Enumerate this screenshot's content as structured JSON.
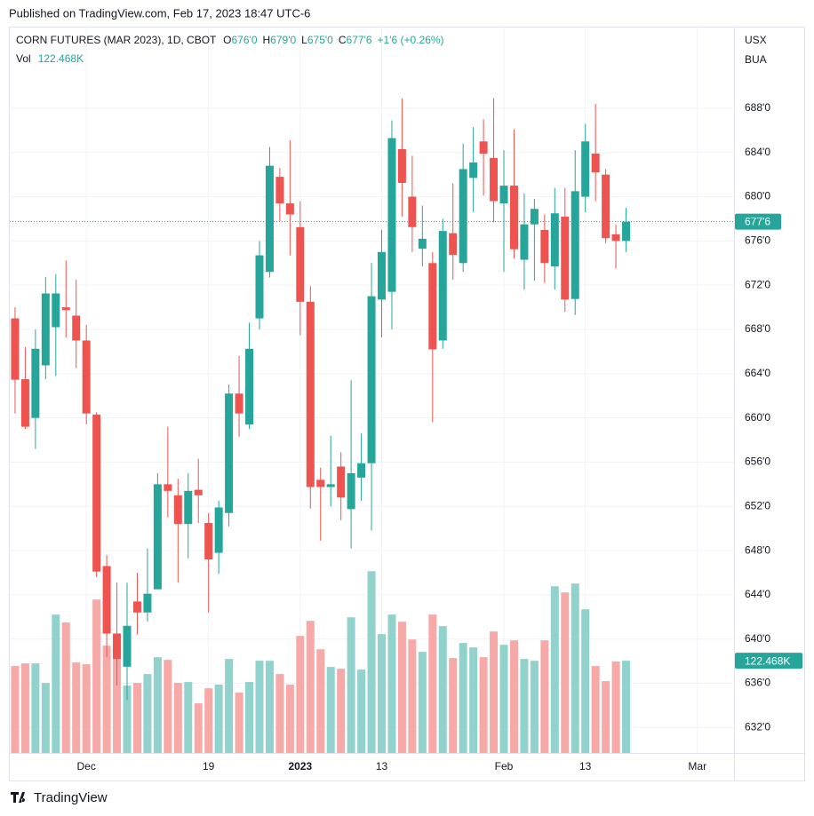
{
  "published": "Published on TradingView.com, Feb 17, 2023 18:47 UTC-6",
  "footer": "TradingView",
  "chart_data": {
    "type": "candlestick",
    "title": "CORN FUTURES (MAR 2023), 1D, CBOT",
    "legend_values": [
      {
        "prefix": "O",
        "text": "676'0"
      },
      {
        "prefix": "H",
        "text": "679'0"
      },
      {
        "prefix": "L",
        "text": "675'0"
      },
      {
        "prefix": "C",
        "text": "677'6"
      }
    ],
    "change": "+1'6 (+0.26%)",
    "volume_name": "Vol",
    "currency": "USX",
    "unit": "BUA",
    "up_color": "#26a69a",
    "down_color": "#ef5350",
    "volume_up_color": "#92d2cc",
    "volume_down_color": "#f7a9a7",
    "grid": true,
    "xlim": [
      -0.52,
      70.6
    ],
    "xticks": [
      {
        "value": 7,
        "label": "Dec"
      },
      {
        "value": 19,
        "label": "19"
      },
      {
        "value": 28,
        "label": "2023"
      },
      {
        "value": 36,
        "label": "13"
      },
      {
        "value": 48,
        "label": "Feb"
      },
      {
        "value": 56,
        "label": "13"
      },
      {
        "value": 67,
        "label": "Mar"
      }
    ],
    "ylim": [
      629.7,
      695.3
    ],
    "yticks": [
      {
        "value": 632,
        "label": "632'0"
      },
      {
        "value": 636,
        "label": "636'0"
      },
      {
        "value": 640,
        "label": "640'0"
      },
      {
        "value": 644,
        "label": "644'0"
      },
      {
        "value": 648,
        "label": "648'0"
      },
      {
        "value": 652,
        "label": "652'0"
      },
      {
        "value": 656,
        "label": "656'0"
      },
      {
        "value": 660,
        "label": "660'0"
      },
      {
        "value": 664,
        "label": "664'0"
      },
      {
        "value": 668,
        "label": "668'0"
      },
      {
        "value": 672,
        "label": "672'0"
      },
      {
        "value": 676,
        "label": "676'0"
      },
      {
        "value": 680,
        "label": "680'0"
      },
      {
        "value": 684,
        "label": "684'0"
      },
      {
        "value": 688,
        "label": "688'0"
      }
    ],
    "open": [
      669,
      663.5,
      660,
      664.75,
      668.2,
      670,
      669.25,
      667,
      660.3,
      646.6,
      640.5,
      637.5,
      643.4,
      642.4,
      644.5,
      654,
      653,
      650.4,
      653.5,
      650.5,
      647.8,
      651.4,
      662.2,
      659.4,
      669,
      673.2,
      681.8,
      679.4,
      677.25,
      670.5,
      654.4,
      653.75,
      655.6,
      651.75,
      654.6,
      655.9,
      670.7,
      671.4,
      684.3,
      680,
      675.3,
      674,
      667,
      676.7,
      674,
      681.7,
      685,
      683.5,
      679.4,
      681,
      674.3,
      677.5,
      677,
      673.7,
      678.2,
      670.75,
      680,
      683.9,
      682,
      676.6,
      676
    ],
    "high": [
      670,
      666.4,
      668,
      672.75,
      673,
      674.25,
      672.5,
      668.4,
      660.5,
      647.6,
      645.1,
      645.1,
      646,
      648.2,
      655,
      659.2,
      654.5,
      655,
      656.3,
      651.4,
      652.5,
      663,
      665.6,
      668.6,
      676,
      684.5,
      682.6,
      685.1,
      679.6,
      671.9,
      655.5,
      658.4,
      656.9,
      663.4,
      658.6,
      674,
      677,
      686.9,
      688.9,
      683.7,
      679.2,
      675,
      678,
      681.2,
      684.8,
      686.3,
      687,
      688.9,
      684.2,
      686.1,
      680.3,
      679.8,
      678.4,
      680.8,
      680.8,
      684.2,
      686.6,
      688.4,
      682.5,
      677.5,
      679
    ],
    "low": [
      660.4,
      659,
      657.2,
      663.5,
      663.8,
      667.25,
      664.5,
      659.4,
      645.6,
      638.4,
      635.8,
      634.5,
      640.4,
      641.6,
      644.5,
      651,
      645.1,
      647.3,
      650.5,
      642.4,
      645.9,
      650.2,
      658.3,
      659,
      668,
      672.7,
      677.8,
      674.7,
      667.5,
      651.8,
      648.9,
      652,
      650.75,
      648.2,
      652.5,
      649.8,
      667.3,
      668,
      678.2,
      675,
      673.7,
      659.6,
      666.25,
      672.5,
      673.2,
      678.6,
      680.1,
      677.7,
      673.2,
      674.4,
      671.6,
      672.4,
      672.2,
      671.6,
      669.6,
      669.3,
      678.6,
      679.6,
      675.8,
      673.5,
      675
    ],
    "close": [
      663.45,
      659.2,
      666.25,
      671.25,
      671.25,
      669.75,
      667,
      660.4,
      646.1,
      640.5,
      638.2,
      641.2,
      642.4,
      644.1,
      654,
      653.4,
      650.4,
      653.4,
      653,
      647.2,
      651.9,
      662.2,
      660.4,
      666.25,
      674.7,
      682.8,
      679.4,
      678.4,
      670.5,
      653.75,
      653.75,
      654,
      652.8,
      655,
      655.9,
      671,
      675,
      685.3,
      681.25,
      677.25,
      676.2,
      666.2,
      676.9,
      674.75,
      682.5,
      683.1,
      683.9,
      679.6,
      681,
      675.25,
      677.5,
      678.9,
      674,
      678.5,
      670.7,
      680.5,
      685,
      682.2,
      676.25,
      676,
      677.75
    ],
    "volume": [
      115400,
      118900,
      118900,
      93000,
      183700,
      173100,
      120100,
      117700,
      203700,
      142500,
      156600,
      89500,
      93000,
      104800,
      127100,
      123600,
      93000,
      94200,
      65900,
      85900,
      90700,
      124800,
      80100,
      94200,
      122400,
      122400,
      104800,
      90700,
      155400,
      175400,
      137700,
      114200,
      111800,
      180100,
      110700,
      241300,
      157800,
      183700,
      174200,
      150700,
      134200,
      183700,
      168400,
      126000,
      146000,
      140100,
      127100,
      161300,
      143600,
      149500,
      124800,
      122400,
      149500,
      221300,
      213100,
      224900,
      190700,
      115400,
      95400,
      121300,
      122468
    ],
    "volume_lim": [
      0,
      963000
    ],
    "last_price": {
      "value": 677.75,
      "label": "677'6"
    },
    "last_volume": {
      "value": 122468,
      "label": "122.468K"
    }
  }
}
